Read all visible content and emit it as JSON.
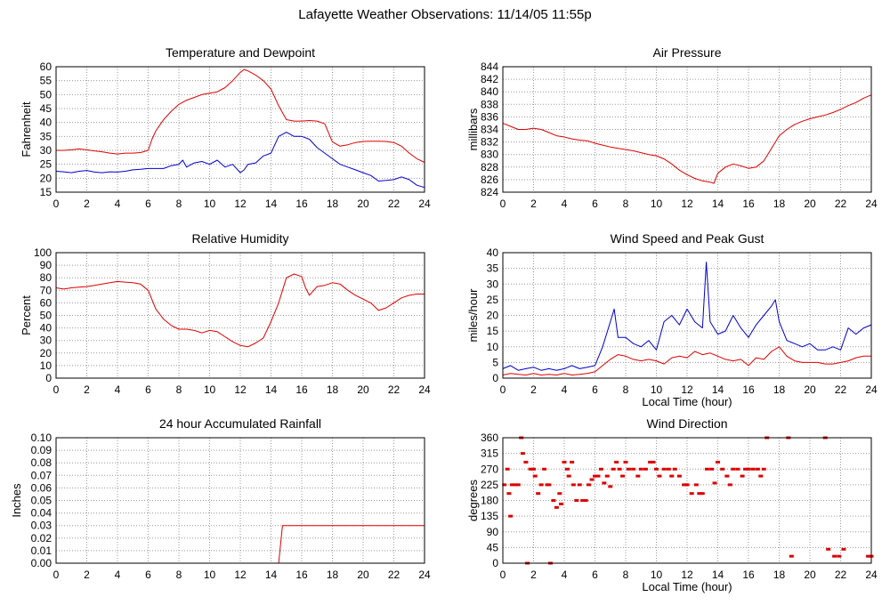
{
  "page": {
    "title": "Lafayette Weather Observations: 11/14/05 11:55p"
  },
  "colors": {
    "red_series": "#dd0000",
    "blue_series": "#0000cc",
    "grid": "#9a9a9a"
  },
  "chart_data": [
    {
      "id": "temp",
      "type": "line",
      "title": "Temperature and Dewpoint",
      "xlabel": "",
      "ylabel": "Fahrenheit",
      "xlim": [
        0,
        24
      ],
      "ylim": [
        15,
        60
      ],
      "xticks": [
        0,
        2,
        4,
        6,
        8,
        10,
        12,
        14,
        16,
        18,
        20,
        22,
        24
      ],
      "yticks": [
        15,
        20,
        25,
        30,
        35,
        40,
        45,
        50,
        55,
        60
      ],
      "grid": true,
      "series": [
        {
          "color": "#dd0000",
          "x": [
            0,
            0.5,
            1,
            1.5,
            2,
            2.5,
            3,
            3.5,
            4,
            4.5,
            5,
            5.5,
            6,
            6.25,
            6.5,
            6.75,
            7,
            7.5,
            8,
            8.5,
            9,
            9.5,
            10,
            10.5,
            11,
            11.5,
            12,
            12.25,
            12.5,
            13,
            13.5,
            14,
            14.5,
            15,
            15.5,
            16,
            16.5,
            17,
            17.5,
            18,
            18.5,
            19,
            19.5,
            20,
            20.5,
            21,
            21.5,
            22,
            22.5,
            23,
            23.5,
            24
          ],
          "y": [
            30,
            30,
            30.2,
            30.5,
            30.2,
            29.8,
            29.5,
            29,
            28.7,
            29,
            29,
            29.2,
            30,
            34,
            37,
            39,
            41,
            44,
            46.5,
            48,
            49,
            50,
            50.5,
            51,
            52.5,
            55,
            58,
            59,
            58.5,
            57,
            55,
            52,
            46,
            41,
            40.5,
            40.5,
            40.7,
            40.5,
            39.5,
            33,
            31.5,
            32,
            32.8,
            33.2,
            33.3,
            33.3,
            33.2,
            32.8,
            31.5,
            29,
            27,
            25.7
          ]
        },
        {
          "color": "#0000cc",
          "x": [
            0,
            0.5,
            1,
            1.5,
            2,
            2.5,
            3,
            3.5,
            4,
            4.5,
            5,
            5.5,
            6,
            6.5,
            7,
            7.5,
            8,
            8.25,
            8.5,
            9,
            9.5,
            10,
            10.5,
            11,
            11.5,
            12,
            12.25,
            12.5,
            13,
            13.5,
            14,
            14.5,
            15,
            15.5,
            16,
            16.5,
            17,
            17.5,
            18,
            18.5,
            19,
            19.5,
            20,
            20.5,
            21,
            21.5,
            22,
            22.5,
            23,
            23.5,
            24
          ],
          "y": [
            22.5,
            22.3,
            22,
            22.5,
            22.8,
            22.2,
            22,
            22.3,
            22.2,
            22.5,
            23,
            23.2,
            23.5,
            23.5,
            23.5,
            24.5,
            25,
            26.5,
            24,
            25.5,
            26,
            25,
            26.5,
            24,
            25,
            22,
            23,
            25,
            25.5,
            28,
            29,
            35,
            36.5,
            35,
            35,
            34,
            31,
            29,
            27,
            25,
            24,
            23,
            22,
            21,
            19,
            19.2,
            19.5,
            20.5,
            19.5,
            17.5,
            16.7
          ]
        }
      ]
    },
    {
      "id": "pressure",
      "type": "line",
      "title": "Air Pressure",
      "xlabel": "",
      "ylabel": "millibars",
      "xlim": [
        0,
        24
      ],
      "ylim": [
        824,
        844
      ],
      "xticks": [
        0,
        2,
        4,
        6,
        8,
        10,
        12,
        14,
        16,
        18,
        20,
        22,
        24
      ],
      "yticks": [
        824,
        826,
        828,
        830,
        832,
        834,
        836,
        838,
        840,
        842,
        844
      ],
      "grid": true,
      "series": [
        {
          "color": "#dd0000",
          "x": [
            0,
            0.5,
            1,
            1.5,
            2,
            2.5,
            3,
            3.5,
            4,
            4.5,
            5,
            5.5,
            6,
            6.5,
            7,
            7.5,
            8,
            8.5,
            9,
            9.5,
            10,
            10.5,
            11,
            11.5,
            12,
            12.5,
            13,
            13.5,
            13.75,
            14,
            14.5,
            15,
            15.5,
            16,
            16.5,
            17,
            17.5,
            18,
            18.5,
            19,
            19.5,
            20,
            20.5,
            21,
            21.5,
            22,
            22.5,
            23,
            23.5,
            24
          ],
          "y": [
            835,
            834.5,
            834,
            834,
            834.2,
            834,
            833.5,
            833,
            832.8,
            832.5,
            832.3,
            832.2,
            831.8,
            831.5,
            831.2,
            831,
            830.8,
            830.6,
            830.3,
            830,
            829.8,
            829.3,
            828.5,
            827.5,
            826.8,
            826.2,
            825.8,
            825.6,
            825.4,
            827,
            828,
            828.5,
            828.2,
            827.8,
            828,
            829,
            831,
            833,
            834,
            834.8,
            835.3,
            835.7,
            836,
            836.3,
            836.7,
            837.2,
            837.8,
            838.3,
            839,
            839.5
          ]
        }
      ]
    },
    {
      "id": "humidity",
      "type": "line",
      "title": "Relative Humidity",
      "xlabel": "",
      "ylabel": "Percent",
      "xlim": [
        0,
        24
      ],
      "ylim": [
        0,
        100
      ],
      "xticks": [
        0,
        2,
        4,
        6,
        8,
        10,
        12,
        14,
        16,
        18,
        20,
        22,
        24
      ],
      "yticks": [
        0,
        10,
        20,
        30,
        40,
        50,
        60,
        70,
        80,
        90,
        100
      ],
      "grid": true,
      "series": [
        {
          "color": "#dd0000",
          "x": [
            0,
            0.5,
            1,
            1.5,
            2,
            2.5,
            3,
            3.5,
            4,
            4.5,
            5,
            5.5,
            6,
            6.5,
            7,
            7.5,
            8,
            8.5,
            9,
            9.5,
            10,
            10.5,
            11,
            11.5,
            12,
            12.5,
            13,
            13.5,
            14,
            14.5,
            15,
            15.5,
            16,
            16.25,
            16.5,
            17,
            17.5,
            18,
            18.5,
            19,
            19.5,
            20,
            20.5,
            21,
            21.5,
            22,
            22.5,
            23,
            23.5,
            24
          ],
          "y": [
            72,
            71,
            72,
            72.5,
            73,
            74,
            75,
            76,
            77,
            76.5,
            76,
            75,
            70,
            55,
            47,
            42,
            39,
            39,
            38,
            36,
            38,
            37,
            33,
            29,
            26,
            25,
            28,
            32,
            45,
            60,
            80,
            83,
            81,
            72,
            66,
            73,
            74,
            76,
            75,
            70,
            66,
            63,
            60,
            54,
            56,
            60,
            64,
            66,
            67,
            67
          ]
        }
      ]
    },
    {
      "id": "wind",
      "type": "line",
      "title": "Wind Speed and Peak Gust",
      "xlabel": "Local Time (hour)",
      "ylabel": "miles/hour",
      "xlim": [
        0,
        24
      ],
      "ylim": [
        0,
        40
      ],
      "xticks": [
        0,
        2,
        4,
        6,
        8,
        10,
        12,
        14,
        16,
        18,
        20,
        22,
        24
      ],
      "yticks": [
        0,
        5,
        10,
        15,
        20,
        25,
        30,
        35,
        40
      ],
      "grid": true,
      "series": [
        {
          "color": "#0000cc",
          "x": [
            0,
            0.5,
            1,
            1.5,
            2,
            2.5,
            3,
            3.5,
            4,
            4.5,
            5,
            5.5,
            6,
            6.5,
            7,
            7.25,
            7.5,
            8,
            8.5,
            9,
            9.5,
            10,
            10.5,
            11,
            11.5,
            12,
            12.5,
            13,
            13.25,
            13.5,
            14,
            14.5,
            15,
            15.5,
            16,
            16.5,
            17,
            17.5,
            17.75,
            18,
            18.5,
            19,
            19.5,
            20,
            20.5,
            21,
            21.5,
            22,
            22.5,
            23,
            23.5,
            24
          ],
          "y": [
            3,
            4,
            2.5,
            3,
            3.5,
            2.5,
            3,
            2.5,
            3,
            4,
            3,
            3.5,
            4,
            10,
            18,
            22,
            13,
            13,
            11,
            10,
            12,
            9,
            18,
            20,
            17,
            22,
            18,
            16,
            37,
            18,
            14,
            15,
            20,
            16,
            13,
            17,
            20,
            23,
            25,
            18,
            12,
            11,
            10,
            11,
            9,
            9,
            10,
            9,
            16,
            14,
            16,
            17
          ]
        },
        {
          "color": "#dd0000",
          "x": [
            0,
            0.5,
            1,
            1.5,
            2,
            2.5,
            3,
            3.5,
            4,
            4.5,
            5,
            5.5,
            6,
            6.5,
            7,
            7.5,
            8,
            8.5,
            9,
            9.5,
            10,
            10.5,
            11,
            11.5,
            12,
            12.5,
            13,
            13.5,
            14,
            14.5,
            15,
            15.5,
            16,
            16.5,
            17,
            17.5,
            18,
            18.5,
            19,
            19.5,
            20,
            20.5,
            21,
            21.5,
            22,
            22.5,
            23,
            23.5,
            24
          ],
          "y": [
            1,
            1.5,
            1.2,
            1,
            1.5,
            1,
            1.2,
            1,
            1.5,
            1,
            1.2,
            1.5,
            2,
            4,
            6,
            7.5,
            7,
            6,
            5.5,
            6,
            5.5,
            4.5,
            6.5,
            7,
            6.5,
            8.5,
            7.5,
            8,
            7,
            6,
            5.5,
            6,
            4,
            6.5,
            6,
            8.5,
            10,
            7,
            5.5,
            5,
            5,
            5,
            4.5,
            4.5,
            5,
            5.5,
            6.5,
            7,
            7
          ]
        }
      ]
    },
    {
      "id": "rain",
      "type": "line",
      "title": "24 hour Accumulated Rainfall",
      "xlabel": "",
      "ylabel": "Inches",
      "xlim": [
        0,
        24
      ],
      "ylim": [
        0,
        0.1
      ],
      "xticks": [
        0,
        2,
        4,
        6,
        8,
        10,
        12,
        14,
        16,
        18,
        20,
        22,
        24
      ],
      "yticks": [
        "0.00",
        "0.01",
        "0.02",
        "0.03",
        "0.04",
        "0.05",
        "0.06",
        "0.07",
        "0.08",
        "0.09",
        "0.10"
      ],
      "grid": true,
      "series": [
        {
          "color": "#dd0000",
          "x": [
            0,
            14.5,
            14.75,
            24
          ],
          "y": [
            0,
            0,
            0.03,
            0.03
          ]
        }
      ]
    },
    {
      "id": "direction",
      "type": "scatter",
      "title": "Wind Direction",
      "xlabel": "Local Time (hour)",
      "ylabel": "degrees",
      "xlim": [
        0,
        24
      ],
      "ylim": [
        0,
        360
      ],
      "xticks": [
        0,
        2,
        4,
        6,
        8,
        10,
        12,
        14,
        16,
        18,
        20,
        22,
        24
      ],
      "yticks": [
        0,
        45,
        90,
        135,
        180,
        225,
        270,
        315,
        360
      ],
      "grid": true,
      "series": [
        {
          "color": "#dd0000",
          "x": [
            0.1,
            0.3,
            0.4,
            0.5,
            0.6,
            0.8,
            1.0,
            1.2,
            1.3,
            1.5,
            1.6,
            1.8,
            2.0,
            2.1,
            2.3,
            2.5,
            2.7,
            2.9,
            3.0,
            3.1,
            3.3,
            3.5,
            3.7,
            3.8,
            4.0,
            4.2,
            4.3,
            4.5,
            4.6,
            4.8,
            5.0,
            5.2,
            5.4,
            5.6,
            5.8,
            6.0,
            6.2,
            6.4,
            6.6,
            6.8,
            7.0,
            7.2,
            7.4,
            7.6,
            7.8,
            8.0,
            8.2,
            8.5,
            8.8,
            9.0,
            9.3,
            9.6,
            9.8,
            10.0,
            10.2,
            10.5,
            10.8,
            11.0,
            11.2,
            11.5,
            11.8,
            12.0,
            12.3,
            12.6,
            12.8,
            13.0,
            13.3,
            13.6,
            13.8,
            14.0,
            14.3,
            14.6,
            14.8,
            15.0,
            15.3,
            15.6,
            15.8,
            16.0,
            16.3,
            16.6,
            16.8,
            17.0,
            17.2,
            18.6,
            18.8,
            21.0,
            21.2,
            21.6,
            21.9,
            22.2,
            23.8,
            24.0
          ],
          "y": [
            225,
            270,
            200,
            135,
            225,
            225,
            225,
            360,
            315,
            290,
            0,
            270,
            270,
            250,
            200,
            225,
            270,
            225,
            225,
            0,
            180,
            160,
            200,
            170,
            290,
            270,
            250,
            290,
            225,
            180,
            225,
            180,
            180,
            225,
            240,
            250,
            250,
            270,
            230,
            250,
            220,
            270,
            290,
            270,
            250,
            290,
            270,
            270,
            250,
            270,
            270,
            290,
            290,
            270,
            250,
            270,
            270,
            250,
            270,
            250,
            225,
            225,
            200,
            225,
            200,
            200,
            270,
            270,
            230,
            290,
            270,
            250,
            225,
            270,
            270,
            250,
            270,
            270,
            270,
            270,
            250,
            270,
            360,
            360,
            20,
            360,
            40,
            20,
            20,
            40,
            20,
            20
          ]
        }
      ]
    }
  ]
}
